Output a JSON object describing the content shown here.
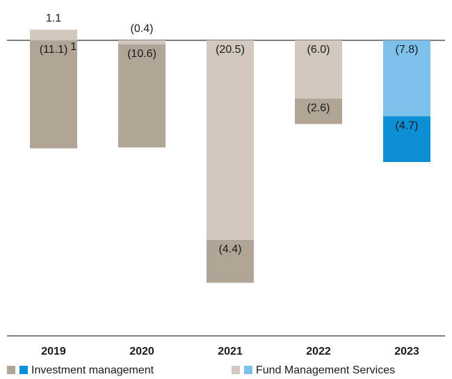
{
  "chart_data": {
    "type": "bar",
    "stacked": true,
    "categories": [
      "2019",
      "2020",
      "2021",
      "2022",
      "2023"
    ],
    "series": [
      {
        "name": "Investment management",
        "colors": [
          "#b0a597",
          "#b0a597",
          "#b0a597",
          "#b0a597",
          "#0d8fd6"
        ],
        "values": [
          -11.1,
          -10.6,
          -4.4,
          -2.6,
          -4.7
        ],
        "value_labels": [
          "(11.1)",
          "(10.6)",
          "(4.4)",
          "(2.6)",
          "(4.7)"
        ]
      },
      {
        "name": "Fund Management Services",
        "colors": [
          "#d2c8bd",
          "#d2c8bd",
          "#d2c8bd",
          "#d2c8bd",
          "#7dc1ea"
        ],
        "values": [
          1.1,
          -0.4,
          -20.5,
          -6.0,
          -7.8
        ],
        "value_labels": [
          "1.1",
          "(0.4)",
          "(20.5)",
          "(6.0)",
          "(7.8)"
        ]
      }
    ],
    "footnote_marker": "1"
  }
}
